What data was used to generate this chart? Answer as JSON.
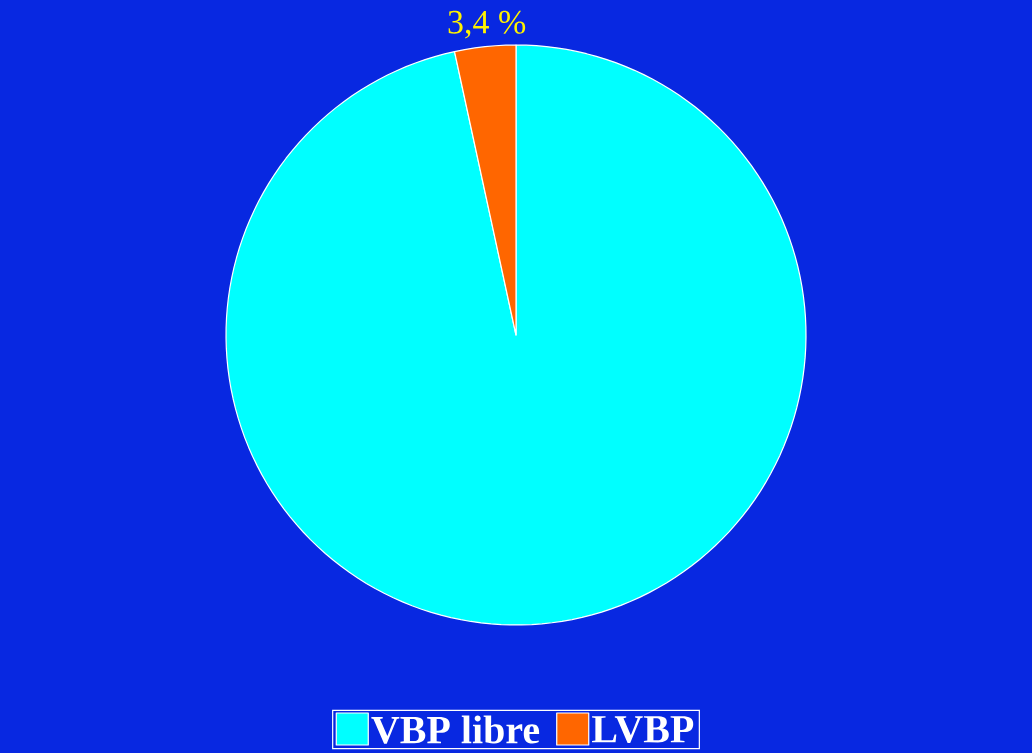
{
  "chart_data": {
    "type": "pie",
    "categories": [
      "VBP libre",
      "LVBP"
    ],
    "values": [
      96.6,
      3.4
    ],
    "colors": [
      "#00ffff",
      "#ff6600"
    ],
    "value_labels": [
      null,
      "3,4 %"
    ],
    "legend": "bottom"
  }
}
